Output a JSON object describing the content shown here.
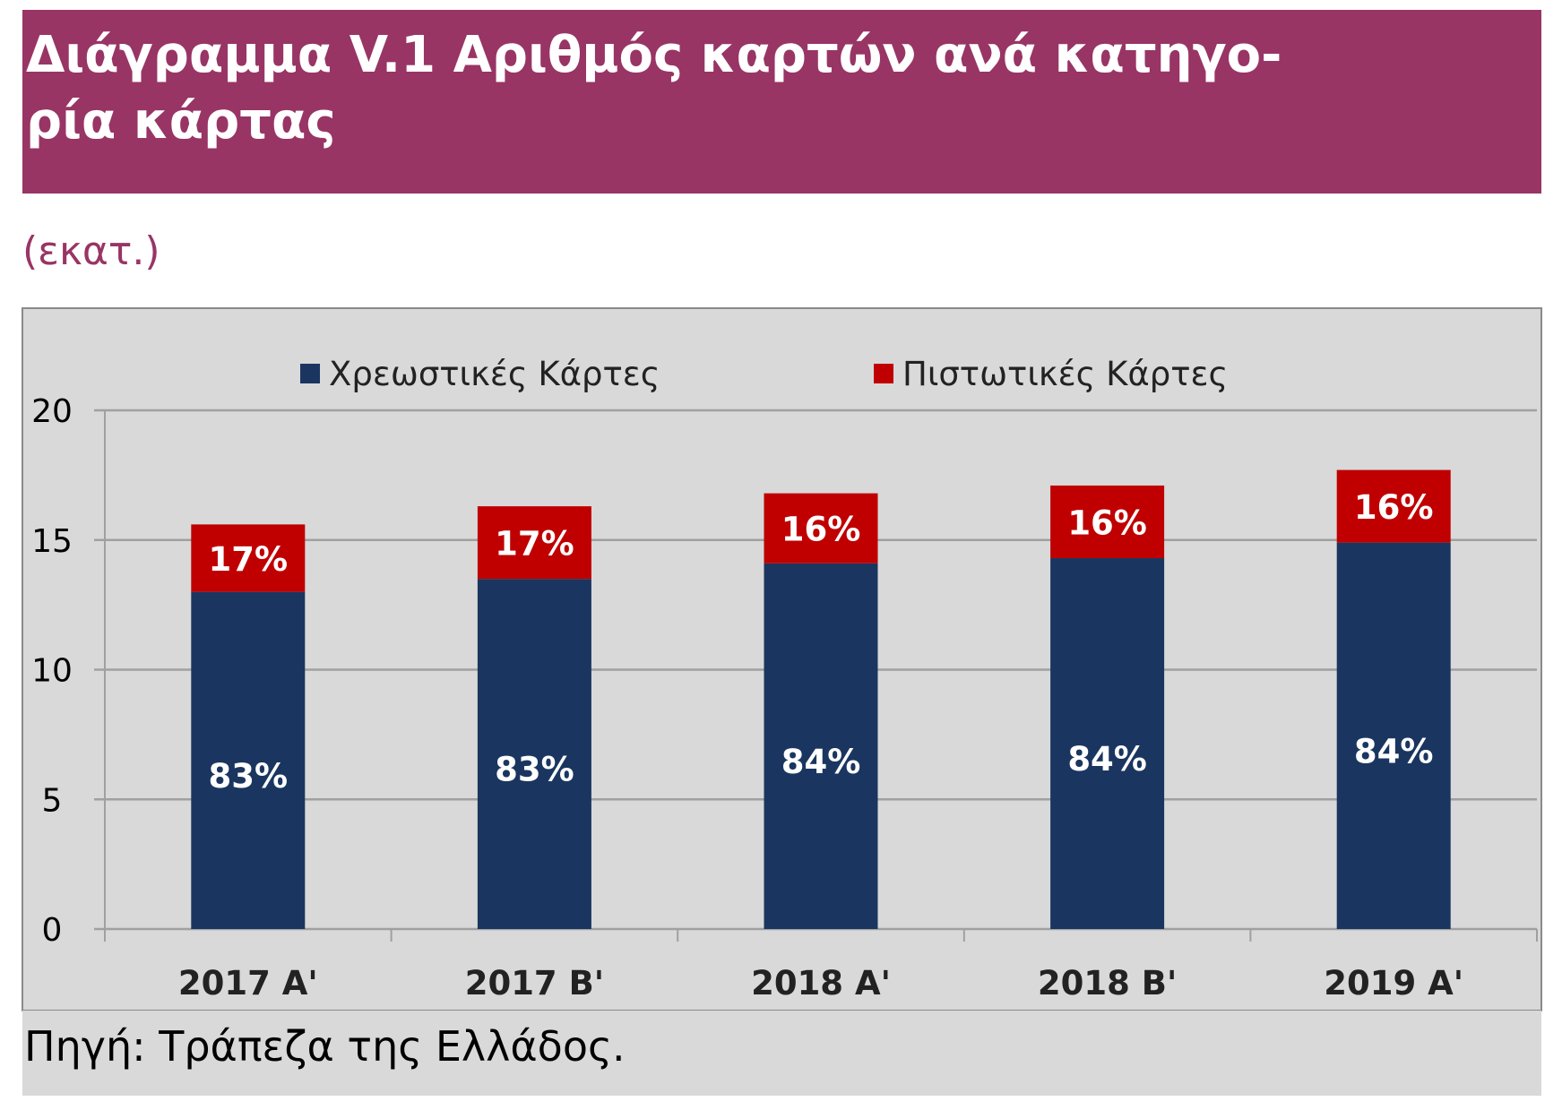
{
  "title": "Διάγραμμα V.1 Αριθμός καρτών ανά κατηγορία κάρτας",
  "title_line1": "Διάγραμμα V.1 Αριθμός καρτών ανά κατηγο-",
  "title_line2": "ρία κάρτας",
  "unit": "(εκατ.)",
  "source": "Πηγή: Τράπεζα της Ελλάδος.",
  "colors": {
    "title_bg": "#983565",
    "debit": "#1a3660",
    "credit": "#c00000",
    "plot_bg": "#d9d9d9"
  },
  "chart_data": {
    "type": "bar",
    "stacked": true,
    "categories": [
      "2017 A'",
      "2017 B'",
      "2018 A'",
      "2018 B'",
      "2019 A'"
    ],
    "series": [
      {
        "name": "Χρεωστικές Κάρτες",
        "values": [
          13.0,
          13.5,
          14.1,
          14.3,
          14.9
        ],
        "labels": [
          "83%",
          "83%",
          "84%",
          "84%",
          "84%"
        ]
      },
      {
        "name": "Πιστωτικές Κάρτες",
        "values": [
          2.6,
          2.8,
          2.7,
          2.8,
          2.8
        ],
        "labels": [
          "17%",
          "17%",
          "16%",
          "16%",
          "16%"
        ]
      }
    ],
    "ylim": [
      0,
      20
    ],
    "yticks": [
      "0",
      "5",
      "10",
      "15",
      "20"
    ],
    "grid": true,
    "legend": "top"
  }
}
